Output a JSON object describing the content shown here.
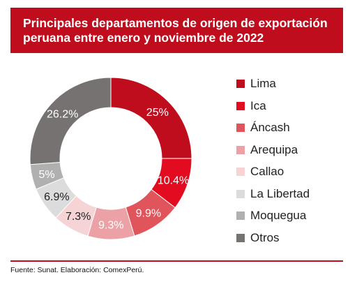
{
  "header": {
    "title_line1": "Principales departamentos de origen de exportación",
    "title_line2": "peruana entre enero y noviembre de 2022"
  },
  "chart_data": {
    "type": "pie",
    "style": "donut",
    "categories": [
      "Lima",
      "Ica",
      "Áncash",
      "Arequipa",
      "Callao",
      "La Libertad",
      "Moquegua",
      "Otros"
    ],
    "values": [
      25,
      10.4,
      9.9,
      9.3,
      7.3,
      6.9,
      5,
      26.2
    ],
    "labels": [
      "25%",
      "10.4%",
      "9.9%",
      "9.3%",
      "7.3%",
      "6.9%",
      "5%",
      "26.2%"
    ],
    "colors": [
      "#c00d1e",
      "#e20b1f",
      "#e0545c",
      "#eba1a5",
      "#f6d3d4",
      "#dcdcdc",
      "#b0b0b0",
      "#767272"
    ],
    "legend_position": "right"
  },
  "footer": {
    "source": "Fuente: Sunat. Elaboración: ComexPerú."
  }
}
